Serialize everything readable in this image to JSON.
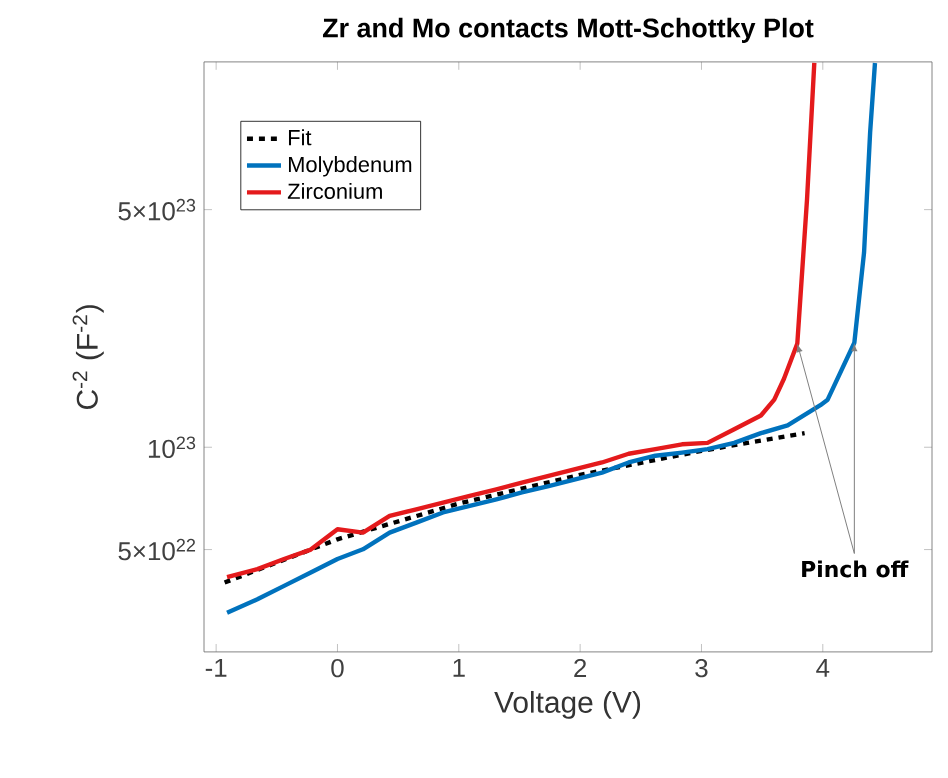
{
  "chart_data": {
    "type": "line",
    "title": "Zr and Mo contacts Mott-Schottky Plot",
    "xlabel": "Voltage (V)",
    "ylabel": "C$^{-2}$ (F$^{-2}$)",
    "xlim": [
      -1.1,
      4.9
    ],
    "xticks": [
      -1,
      0,
      1,
      2,
      3,
      4
    ],
    "ylim": [
      2.5e+22,
      1.36e+24
    ],
    "yticks": [
      {
        "value": 5e+22,
        "label": "5×10$^{22}$"
      },
      {
        "value": 1e+23,
        "label": "10$^{23}$"
      },
      {
        "value": 5e+23,
        "label": "5×10$^{23}$"
      }
    ],
    "log": "y",
    "legend": "top left",
    "grid": false,
    "marker": "none",
    "series": [
      {
        "name": "Fit",
        "color": "#000000",
        "line_style": "dashed",
        "x": [
          -0.93,
          0,
          1,
          2,
          3,
          3.85
        ],
        "values": [
          4e+22,
          5.36e+22,
          6.83e+22,
          8.29e+22,
          9.76e+22,
          1.1e+23
        ]
      },
      {
        "name": "Molybdenum",
        "color": "#0072bd",
        "line_style": "solid",
        "x": [
          -0.91,
          -0.66,
          -0.44,
          -0.22,
          0,
          0.21,
          0.43,
          0.65,
          0.87,
          1.09,
          1.31,
          1.52,
          1.74,
          1.96,
          2.18,
          2.4,
          2.62,
          2.84,
          3.05,
          3.27,
          3.49,
          3.71,
          3.98,
          4.04,
          4.26,
          4.34,
          4.39,
          4.43
        ],
        "values": [
          3.26e+22,
          3.57e+22,
          3.91e+22,
          4.28e+22,
          4.69e+22,
          5.01e+22,
          5.61e+22,
          6e+22,
          6.43e+22,
          6.72e+22,
          7.03e+22,
          7.36e+22,
          7.69e+22,
          8.05e+22,
          8.42e+22,
          9.02e+22,
          9.44e+22,
          9.64e+22,
          9.87e+22,
          1.03e+23,
          1.1e+23,
          1.16e+23,
          1.33e+23,
          1.38e+23,
          2.03e+23,
          3.74e+23,
          8.42e+23,
          1.35e+24
        ]
      },
      {
        "name": "Zirconium",
        "color": "#e41a1c",
        "line_style": "solid",
        "x": [
          -0.91,
          -0.66,
          -0.44,
          -0.22,
          0,
          0.21,
          0.43,
          0.65,
          0.87,
          1.09,
          1.31,
          1.52,
          1.74,
          1.96,
          2.18,
          2.4,
          2.62,
          2.84,
          3.05,
          3.27,
          3.49,
          3.6,
          3.68,
          3.79,
          3.87,
          3.93
        ],
        "values": [
          4.15e+22,
          4.38e+22,
          4.69e+22,
          5e+22,
          5.74e+22,
          5.61e+22,
          6.28e+22,
          6.57e+22,
          6.87e+22,
          7.19e+22,
          7.52e+22,
          7.87e+22,
          8.24e+22,
          8.62e+22,
          9.02e+22,
          9.57e+22,
          9.87e+22,
          1.02e+23,
          1.03e+23,
          1.13e+23,
          1.24e+23,
          1.38e+23,
          1.59e+23,
          2.02e+23,
          5.36e+23,
          1.35e+24
        ]
      }
    ],
    "annotations": [
      {
        "text": "**Pinch off**",
        "x": 4.26,
        "y": 2.03e+23
      }
    ]
  }
}
